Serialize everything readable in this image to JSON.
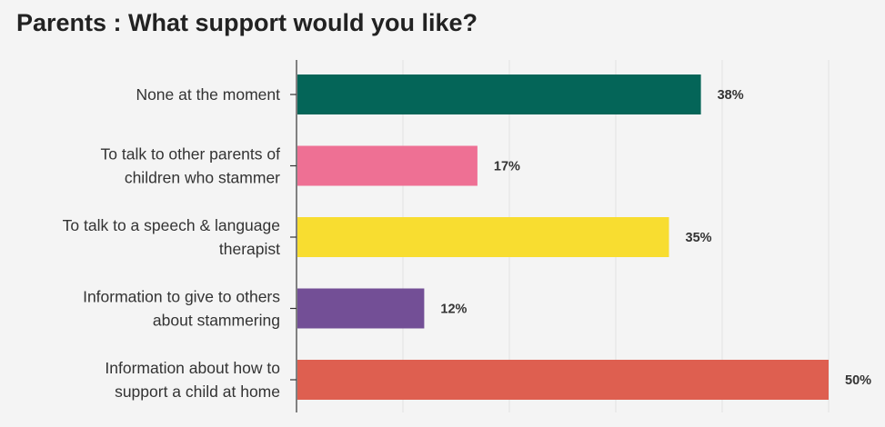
{
  "title": "Parents : What support would you like?",
  "chart_data": {
    "type": "bar",
    "orientation": "horizontal",
    "title": "Parents : What support would you like?",
    "xlabel": "",
    "ylabel": "",
    "xlim": [
      0,
      50
    ],
    "grid": true,
    "legend": "none",
    "value_suffix": "%",
    "categories": [
      [
        "None at the moment"
      ],
      [
        "To talk to other parents of",
        "children who stammer"
      ],
      [
        "To talk to a speech & language",
        "therapist"
      ],
      [
        "Information to give to others",
        "about stammering"
      ],
      [
        "Information about how to",
        "support a child at home"
      ]
    ],
    "values": [
      38,
      17,
      35,
      12,
      50
    ],
    "value_labels": [
      "38%",
      "17%",
      "35%",
      "12%",
      "50%"
    ],
    "colors": [
      "#046558",
      "#ee7094",
      "#f8dd30",
      "#734f96",
      "#de5f50"
    ]
  },
  "colors": {
    "background": "#f4f4f4",
    "grid": "#e2e2e2",
    "axis": "#333333",
    "text": "#333333"
  }
}
